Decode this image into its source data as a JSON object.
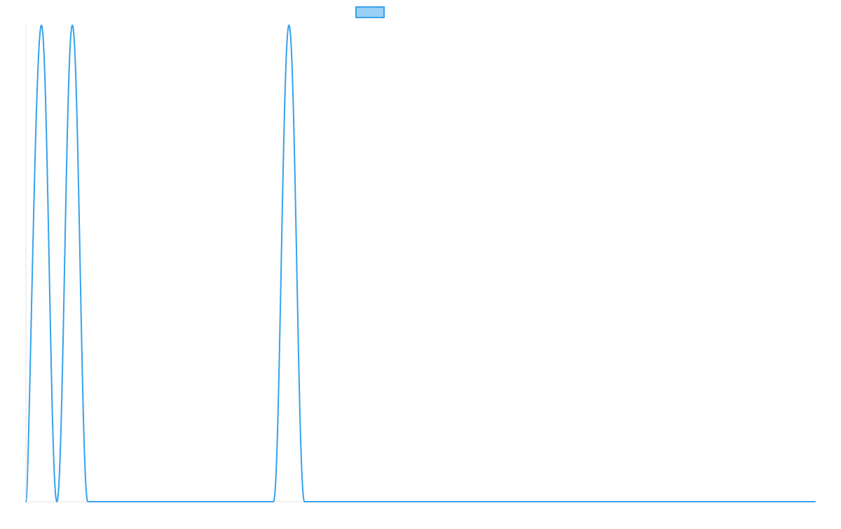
{
  "chart_data": {
    "type": "line",
    "title": "",
    "xlabel": "",
    "ylabel": "",
    "xlim": [
      0,
      51
    ],
    "ylim": [
      0,
      1
    ],
    "grid": false,
    "legend": "top-center",
    "series": [
      {
        "name": "",
        "color": "#36a2eb",
        "fill": "#9ad0f5",
        "x": [
          0,
          1,
          2,
          3,
          4,
          5,
          6,
          7,
          8,
          9,
          10,
          11,
          12,
          13,
          14,
          15,
          16,
          17,
          18,
          19,
          20,
          21,
          22,
          23,
          24,
          25,
          26,
          27,
          28,
          29,
          30,
          31,
          32,
          33,
          34,
          35,
          36,
          37,
          38,
          39,
          40,
          41,
          42,
          43,
          44,
          45,
          46,
          47,
          48,
          49,
          50,
          51
        ],
        "values": [
          0,
          1,
          0,
          1,
          0,
          0,
          0,
          0,
          0,
          0,
          0,
          0,
          0,
          0,
          0,
          0,
          0,
          1,
          0,
          0,
          0,
          0,
          0,
          0,
          0,
          0,
          0,
          0,
          0,
          0,
          0,
          0,
          0,
          0,
          0,
          0,
          0,
          0,
          0,
          0,
          0,
          0,
          0,
          0,
          0,
          0,
          0,
          0,
          0,
          0,
          0,
          0
        ]
      }
    ]
  }
}
